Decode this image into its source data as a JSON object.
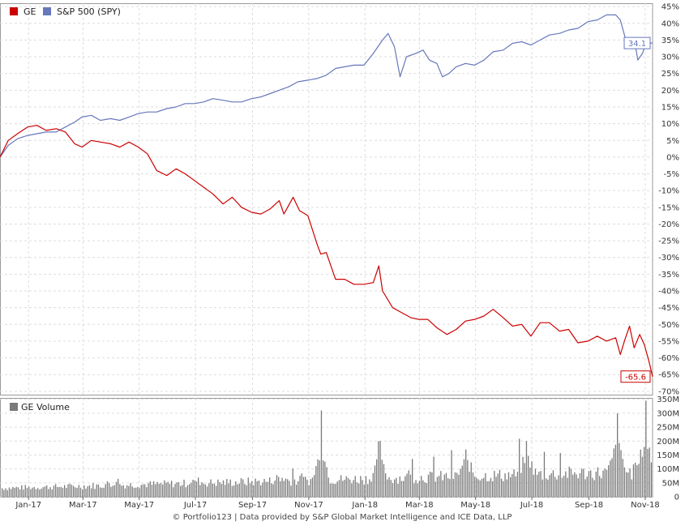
{
  "footer": "© Portfolio123 | Data provided by S&P Global Market Intelligence and ICE Data, LLP",
  "colors": {
    "ge": "#cc0000",
    "spy": "#6677bb",
    "volume": "#7a7a7a",
    "grid": "#dddddd",
    "border": "#999999"
  },
  "chart_data": [
    {
      "type": "line",
      "title": "",
      "legend": [
        {
          "name": "GE",
          "color": "#cc0000"
        },
        {
          "name": "S&P 500 (SPY)",
          "color": "#6677bb"
        }
      ],
      "legend_position": "top-left",
      "grid": true,
      "y_axis": {
        "ticks": [
          45,
          40,
          35,
          30,
          25,
          20,
          15,
          10,
          5,
          0,
          -5,
          -10,
          -15,
          -20,
          -25,
          -30,
          -35,
          -40,
          -45,
          -50,
          -55,
          -60,
          -65,
          -70
        ],
        "tick_labels": [
          "45%",
          "40%",
          "35%",
          "30%",
          "25%",
          "20%",
          "15%",
          "10%",
          "5%",
          "0%",
          "-5%",
          "-10%",
          "-15%",
          "-20%",
          "-25%",
          "-30%",
          "-35%",
          "-40%",
          "-45%",
          "-50%",
          "-55%",
          "-60%",
          "-65%",
          "-70%"
        ],
        "range": [
          -71,
          46
        ],
        "position": "right"
      },
      "x_axis": {
        "range": [
          "2016-12-01",
          "2018-11-09"
        ],
        "ticks": [
          "2017-01-01",
          "2017-03-01",
          "2017-05-01",
          "2017-07-01",
          "2017-09-01",
          "2017-11-01",
          "2018-01-01",
          "2018-03-01",
          "2018-05-01",
          "2018-07-01",
          "2018-09-01",
          "2018-11-01"
        ],
        "tick_labels": [
          "Jan-17",
          "Mar-17",
          "May-17",
          "Jul-17",
          "Sep-17",
          "Nov-17",
          "Jan-18",
          "Mar-18",
          "May-18",
          "Jul-18",
          "Sep-18",
          "Nov-18"
        ]
      },
      "series": [
        {
          "name": "S&P 500 (SPY)",
          "color": "#6677bb",
          "end_label": "34.1",
          "x": [
            "2016-12-01",
            "2016-12-10",
            "2016-12-20",
            "2016-12-31",
            "2017-01-10",
            "2017-01-20",
            "2017-01-31",
            "2017-02-10",
            "2017-02-20",
            "2017-02-28",
            "2017-03-10",
            "2017-03-20",
            "2017-03-31",
            "2017-04-10",
            "2017-04-20",
            "2017-04-30",
            "2017-05-10",
            "2017-05-20",
            "2017-05-31",
            "2017-06-10",
            "2017-06-20",
            "2017-06-30",
            "2017-07-10",
            "2017-07-20",
            "2017-07-31",
            "2017-08-10",
            "2017-08-20",
            "2017-08-31",
            "2017-09-10",
            "2017-09-20",
            "2017-09-30",
            "2017-10-10",
            "2017-10-20",
            "2017-10-31",
            "2017-11-10",
            "2017-11-20",
            "2017-11-30",
            "2017-12-10",
            "2017-12-20",
            "2017-12-31",
            "2018-01-10",
            "2018-01-20",
            "2018-01-26",
            "2018-02-02",
            "2018-02-08",
            "2018-02-15",
            "2018-02-25",
            "2018-03-05",
            "2018-03-12",
            "2018-03-20",
            "2018-03-26",
            "2018-04-02",
            "2018-04-10",
            "2018-04-20",
            "2018-04-30",
            "2018-05-10",
            "2018-05-20",
            "2018-05-31",
            "2018-06-10",
            "2018-06-20",
            "2018-06-30",
            "2018-07-10",
            "2018-07-20",
            "2018-07-31",
            "2018-08-10",
            "2018-08-20",
            "2018-08-31",
            "2018-09-10",
            "2018-09-20",
            "2018-09-30",
            "2018-10-05",
            "2018-10-10",
            "2018-10-15",
            "2018-10-20",
            "2018-10-24",
            "2018-10-29",
            "2018-11-02",
            "2018-11-09"
          ],
          "values": [
            0,
            3.5,
            5.5,
            6.5,
            7.0,
            7.5,
            7.5,
            9.0,
            10.5,
            12.0,
            12.5,
            11.0,
            11.5,
            11.0,
            12.0,
            13.0,
            13.5,
            13.5,
            14.5,
            15.0,
            16.0,
            16.0,
            16.5,
            17.5,
            17.0,
            16.5,
            16.5,
            17.5,
            18.0,
            19.0,
            20.0,
            21.0,
            22.5,
            23.0,
            23.5,
            24.5,
            26.5,
            27.0,
            27.5,
            27.5,
            31.0,
            35.0,
            37.0,
            33.0,
            24.0,
            30.0,
            31.0,
            32.0,
            29.0,
            28.0,
            24.0,
            25.0,
            27.0,
            28.0,
            27.5,
            29.0,
            31.5,
            32.0,
            34.0,
            34.5,
            33.5,
            35.0,
            36.5,
            37.0,
            38.0,
            38.5,
            40.5,
            41.0,
            42.5,
            42.5,
            41.0,
            36.0,
            33.0,
            35.5,
            29.0,
            31.0,
            34.0,
            34.1
          ]
        },
        {
          "name": "GE",
          "color": "#cc0000",
          "end_label": "-65.6",
          "x": [
            "2016-12-01",
            "2016-12-10",
            "2016-12-20",
            "2016-12-31",
            "2017-01-10",
            "2017-01-20",
            "2017-01-31",
            "2017-02-10",
            "2017-02-20",
            "2017-02-28",
            "2017-03-10",
            "2017-03-20",
            "2017-03-31",
            "2017-04-10",
            "2017-04-20",
            "2017-04-30",
            "2017-05-10",
            "2017-05-20",
            "2017-05-31",
            "2017-06-10",
            "2017-06-20",
            "2017-06-30",
            "2017-07-10",
            "2017-07-20",
            "2017-07-31",
            "2017-08-10",
            "2017-08-20",
            "2017-08-31",
            "2017-09-10",
            "2017-09-20",
            "2017-09-30",
            "2017-10-05",
            "2017-10-15",
            "2017-10-22",
            "2017-10-31",
            "2017-11-10",
            "2017-11-14",
            "2017-11-20",
            "2017-11-30",
            "2017-12-10",
            "2017-12-20",
            "2017-12-31",
            "2018-01-10",
            "2018-01-16",
            "2018-01-20",
            "2018-01-31",
            "2018-02-10",
            "2018-02-20",
            "2018-02-28",
            "2018-03-10",
            "2018-03-20",
            "2018-03-31",
            "2018-04-10",
            "2018-04-20",
            "2018-04-30",
            "2018-05-10",
            "2018-05-20",
            "2018-05-31",
            "2018-06-10",
            "2018-06-20",
            "2018-06-30",
            "2018-07-10",
            "2018-07-20",
            "2018-07-31",
            "2018-08-10",
            "2018-08-20",
            "2018-08-31",
            "2018-09-10",
            "2018-09-20",
            "2018-09-30",
            "2018-10-05",
            "2018-10-10",
            "2018-10-15",
            "2018-10-20",
            "2018-10-26",
            "2018-10-31",
            "2018-11-05",
            "2018-11-09"
          ],
          "values": [
            0,
            5.0,
            7.0,
            9.0,
            9.5,
            8.0,
            8.5,
            7.5,
            4.0,
            3.0,
            5.0,
            4.5,
            4.0,
            3.0,
            4.5,
            3.0,
            1.0,
            -4.0,
            -5.5,
            -3.5,
            -5.0,
            -7.0,
            -9.0,
            -11.0,
            -14.0,
            -12.0,
            -15.0,
            -16.5,
            -17.0,
            -15.5,
            -13.0,
            -17.0,
            -12.0,
            -16.0,
            -17.5,
            -26.0,
            -29.0,
            -28.5,
            -36.5,
            -36.5,
            -38.0,
            -38.0,
            -37.5,
            -32.5,
            -40.0,
            -45.0,
            -46.5,
            -48.0,
            -48.5,
            -48.5,
            -51.0,
            -53.0,
            -51.5,
            -49.0,
            -48.5,
            -47.5,
            -45.5,
            -48.0,
            -50.5,
            -50.0,
            -53.5,
            -49.5,
            -49.5,
            -52.0,
            -51.5,
            -55.5,
            -55.0,
            -53.5,
            -55.0,
            -54.0,
            -59.0,
            -54.5,
            -50.5,
            -57.0,
            -53.0,
            -56.0,
            -61.0,
            -65.6
          ]
        }
      ]
    },
    {
      "type": "bar",
      "title": "",
      "legend": [
        {
          "name": "GE Volume",
          "color": "#7a7a7a"
        }
      ],
      "legend_position": "top-left",
      "grid": true,
      "y_axis": {
        "ticks": [
          350,
          300,
          250,
          200,
          150,
          100,
          50,
          0
        ],
        "tick_labels": [
          "350M",
          "300M",
          "250M",
          "200M",
          "150M",
          "100M",
          "50M",
          "0"
        ],
        "range": [
          0,
          355
        ],
        "position": "right"
      },
      "x_axis": {
        "range": [
          "2016-12-01",
          "2018-11-09"
        ]
      },
      "series": [
        {
          "name": "GE Volume",
          "color": "#7a7a7a",
          "x": [
            "2017-03-31",
            "2017-06-30",
            "2017-09-30",
            "2017-11-14",
            "2018-01-16",
            "2018-04-20",
            "2018-06-25",
            "2018-10-01",
            "2018-11-01"
          ],
          "values": [
            30,
            35,
            45,
            310,
            200,
            170,
            200,
            300,
            345
          ]
        }
      ]
    }
  ]
}
